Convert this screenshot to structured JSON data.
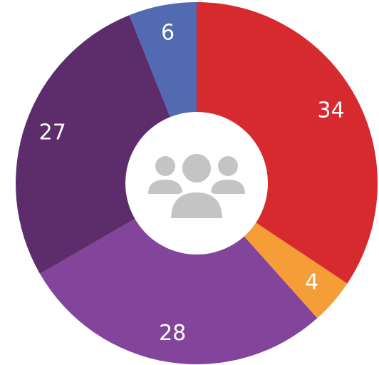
{
  "chart_data": {
    "type": "donut",
    "values": [
      34,
      4,
      28,
      27,
      6
    ],
    "colors": [
      "#d62a2f",
      "#f59d36",
      "#83449b",
      "#5d2d6b",
      "#516ab2"
    ]
  }
}
